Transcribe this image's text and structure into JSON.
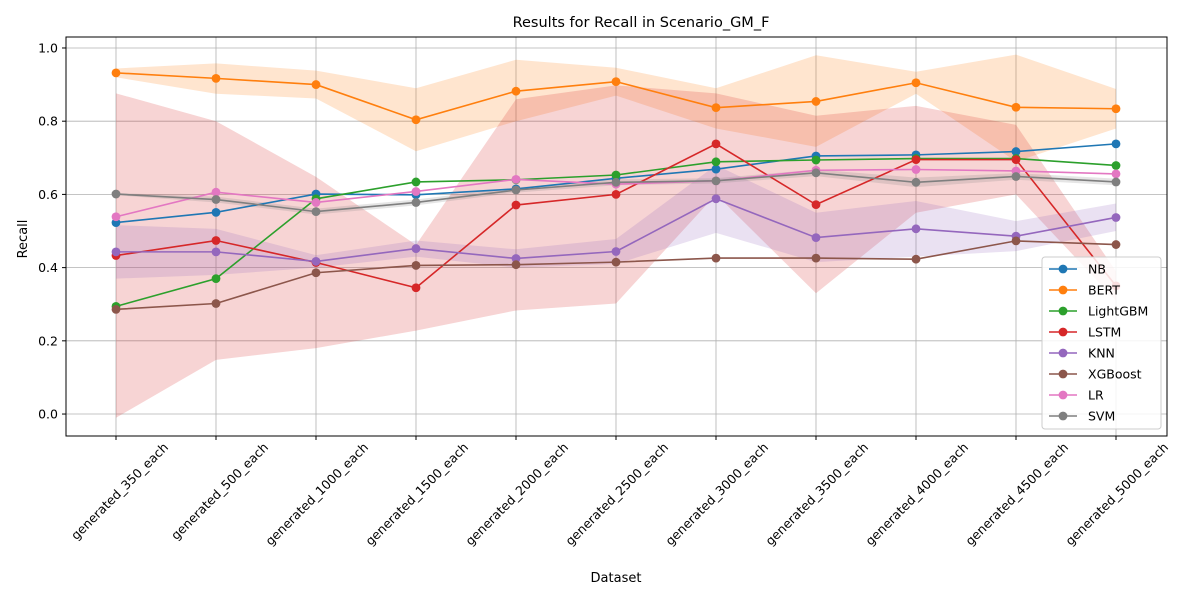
{
  "chart_data": {
    "type": "line",
    "title": "Results for Recall in Scenario_GM_F",
    "xlabel": "Dataset",
    "ylabel": "Recall",
    "ylim": [
      -0.06,
      1.03
    ],
    "yticks": [
      0.0,
      0.2,
      0.4,
      0.6,
      0.8,
      1.0
    ],
    "ytick_labels": [
      "0.0",
      "0.2",
      "0.4",
      "0.6",
      "0.8",
      "1.0"
    ],
    "grid": true,
    "legend": "lower-right",
    "categories": [
      "generated_350_each",
      "generated_500_each",
      "generated_1000_each",
      "generated_1500_each",
      "generated_2000_each",
      "generated_2500_each",
      "generated_3000_each",
      "generated_3500_each",
      "generated_4000_each",
      "generated_4500_each",
      "generated_5000_each"
    ],
    "series": [
      {
        "name": "NB",
        "color": "#1f77b4",
        "values": [
          0.523,
          0.551,
          0.601,
          0.599,
          0.615,
          0.644,
          0.669,
          0.705,
          0.708,
          0.717,
          0.738
        ]
      },
      {
        "name": "BERT",
        "color": "#ff7f0e",
        "values": [
          0.932,
          0.917,
          0.9,
          0.804,
          0.882,
          0.908,
          0.837,
          0.854,
          0.905,
          0.838,
          0.834
        ],
        "band_low": [
          0.92,
          0.875,
          0.862,
          0.718,
          0.8,
          0.87,
          0.78,
          0.73,
          0.875,
          0.69,
          0.78
        ],
        "band_high": [
          0.944,
          0.958,
          0.938,
          0.89,
          0.968,
          0.946,
          0.89,
          0.98,
          0.935,
          0.982,
          0.888
        ]
      },
      {
        "name": "LightGBM",
        "color": "#2ca02c",
        "values": [
          0.294,
          0.37,
          0.588,
          0.634,
          0.64,
          0.653,
          0.689,
          0.694,
          0.698,
          0.698,
          0.679
        ]
      },
      {
        "name": "LSTM",
        "color": "#d62728",
        "values": [
          0.433,
          0.474,
          0.414,
          0.345,
          0.571,
          0.6,
          0.738,
          0.572,
          0.695,
          0.695,
          0.35
        ],
        "band_low": [
          -0.01,
          0.148,
          0.18,
          0.228,
          0.283,
          0.302,
          0.6,
          0.33,
          0.55,
          0.6,
          0.31
        ],
        "band_high": [
          0.876,
          0.8,
          0.648,
          0.462,
          0.86,
          0.898,
          0.876,
          0.815,
          0.842,
          0.79,
          0.39
        ]
      },
      {
        "name": "KNN",
        "color": "#9467bd",
        "values": [
          0.443,
          0.443,
          0.417,
          0.452,
          0.425,
          0.444,
          0.588,
          0.482,
          0.506,
          0.486,
          0.537
        ],
        "band_low": [
          0.37,
          0.38,
          0.4,
          0.43,
          0.4,
          0.41,
          0.495,
          0.415,
          0.43,
          0.445,
          0.5
        ],
        "band_high": [
          0.516,
          0.506,
          0.434,
          0.474,
          0.45,
          0.478,
          0.68,
          0.55,
          0.582,
          0.527,
          0.575
        ]
      },
      {
        "name": "XGBoost",
        "color": "#8c564b",
        "values": [
          0.286,
          0.302,
          0.386,
          0.406,
          0.408,
          0.415,
          0.426,
          0.426,
          0.423,
          0.473,
          0.463
        ]
      },
      {
        "name": "LR",
        "color": "#e377c2",
        "values": [
          0.539,
          0.606,
          0.578,
          0.608,
          0.641,
          0.628,
          0.637,
          0.666,
          0.668,
          0.664,
          0.656
        ]
      },
      {
        "name": "SVM",
        "color": "#7f7f7f",
        "values": [
          0.601,
          0.586,
          0.553,
          0.578,
          0.612,
          0.633,
          0.637,
          0.659,
          0.633,
          0.649,
          0.634
        ],
        "band_low": [
          0.598,
          0.578,
          0.545,
          0.57,
          0.605,
          0.625,
          0.63,
          0.65,
          0.62,
          0.64,
          0.625
        ],
        "band_high": [
          0.604,
          0.594,
          0.561,
          0.586,
          0.619,
          0.641,
          0.644,
          0.668,
          0.646,
          0.658,
          0.643
        ]
      }
    ]
  }
}
